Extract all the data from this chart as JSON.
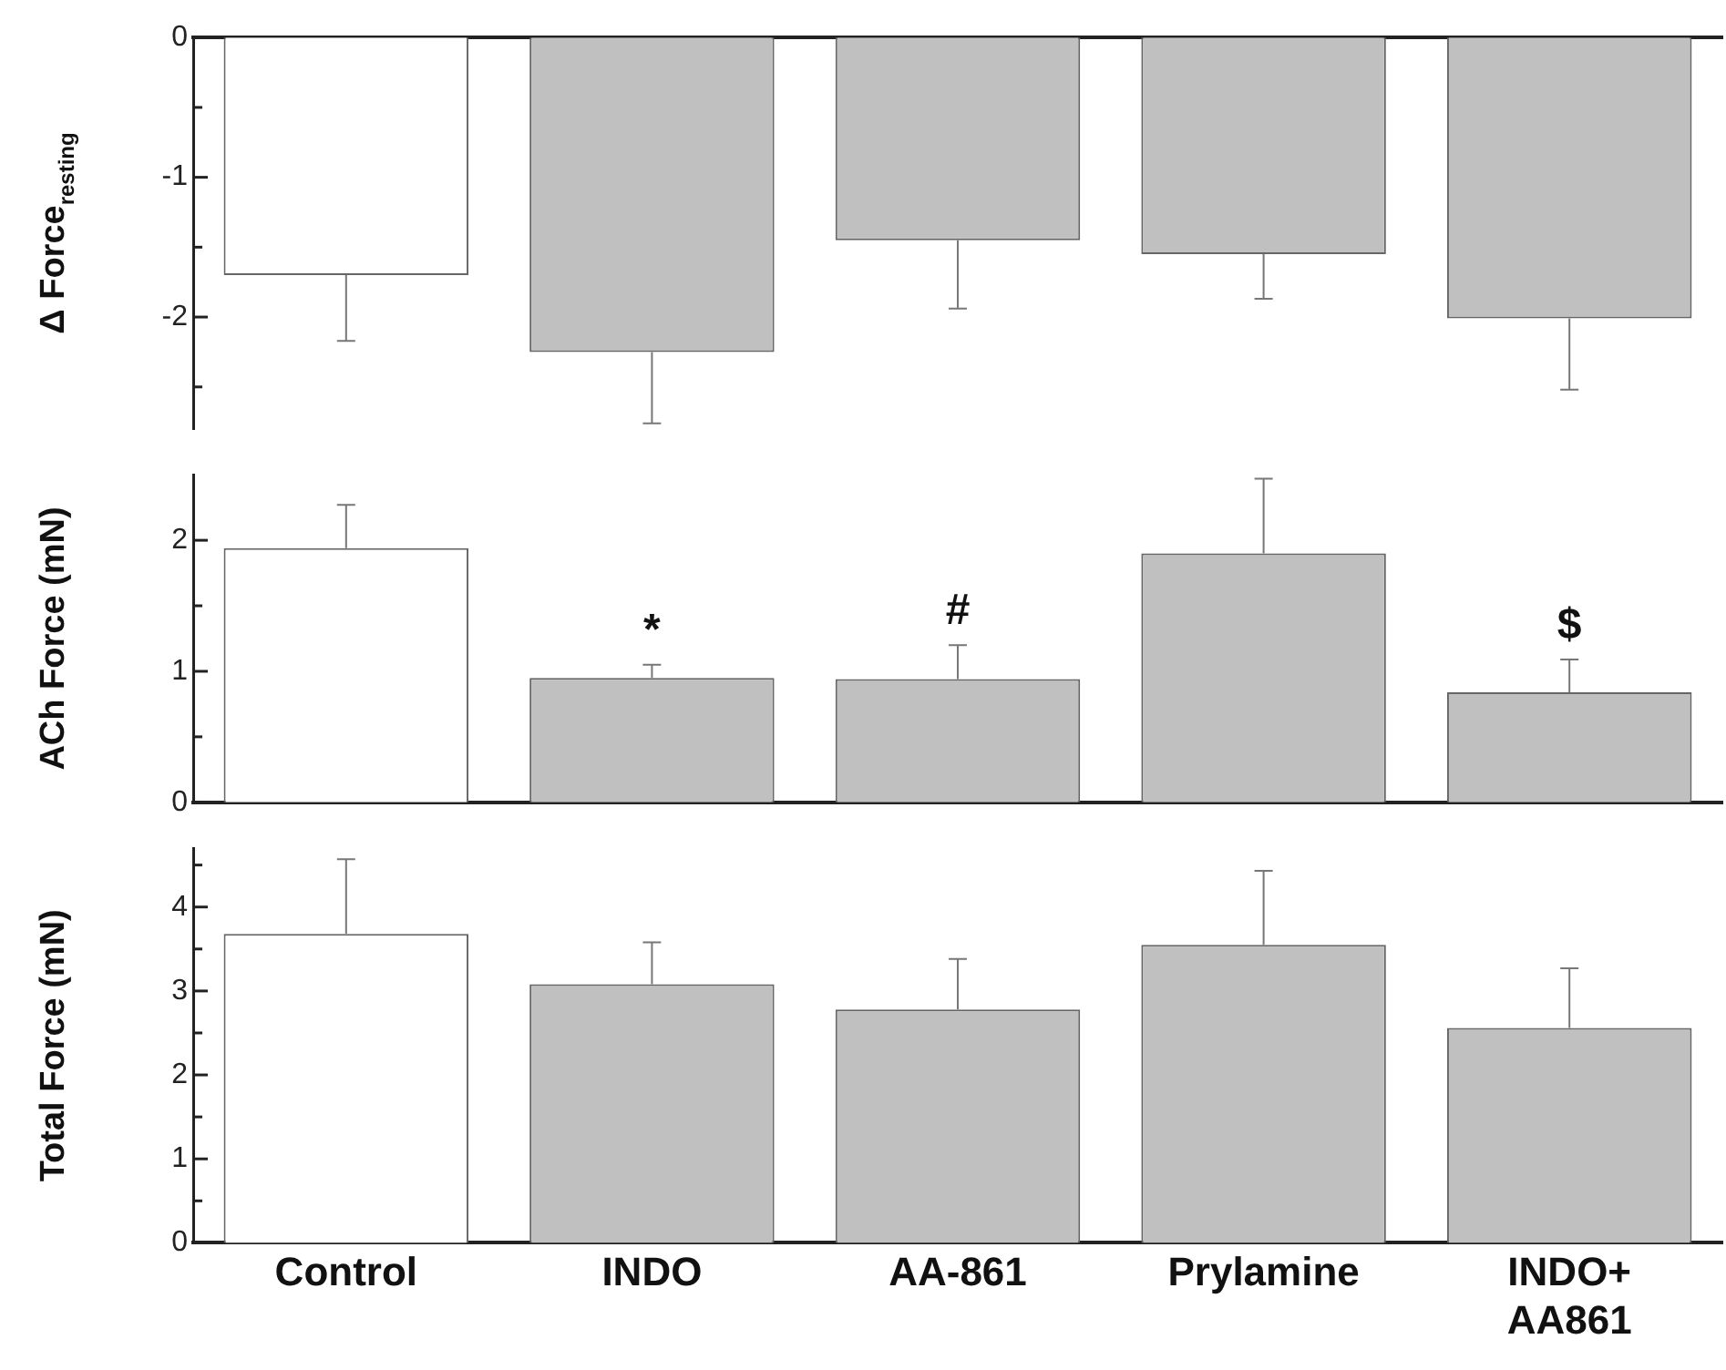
{
  "chart_data": [
    {
      "type": "bar",
      "ylabel": "Δ Force$_{resting}$",
      "categories": [
        "Control",
        "INDO",
        "AA-861",
        "Prylamine",
        "INDO+ AA861"
      ],
      "values": [
        -1.7,
        -2.25,
        -1.45,
        -1.55,
        -2.01
      ],
      "errors": [
        0.47,
        0.51,
        0.49,
        0.32,
        0.51
      ],
      "colors": [
        "#ffffff",
        "#c0c0c0",
        "#c0c0c0",
        "#c0c0c0",
        "#c0c0c0"
      ],
      "ylim": [
        -2.8,
        0
      ],
      "yticks": [
        0,
        {
          "value": -0.5,
          "label": null
        },
        -1,
        {
          "value": -1.5,
          "label": null
        },
        -2,
        {
          "value": -2.5,
          "label": null
        }
      ],
      "tick_labels": "y",
      "grid": false
    },
    {
      "type": "bar",
      "ylabel": "ACh Force (mN)",
      "categories": [
        "Control",
        "INDO",
        "AA-861",
        "Prylamine",
        "INDO+ AA861"
      ],
      "values": [
        1.94,
        0.95,
        0.94,
        1.9,
        0.84
      ],
      "errors": [
        0.33,
        0.1,
        0.26,
        0.57,
        0.25
      ],
      "colors": [
        "#ffffff",
        "#c0c0c0",
        "#c0c0c0",
        "#c0c0c0",
        "#c0c0c0"
      ],
      "ylim": [
        0,
        2.5
      ],
      "yticks": [
        0,
        {
          "value": 0.5,
          "label": null
        },
        1,
        {
          "value": 1.5,
          "label": null
        },
        2
      ],
      "tick_labels": "y",
      "grid": false,
      "annotations": [
        {
          "text": "*",
          "x": "INDO",
          "y": 0.95
        },
        {
          "text": "#",
          "x": "AA-861",
          "y": 0.94
        },
        {
          "text": "$",
          "x": "INDO+ AA861",
          "y": 0.84
        }
      ]
    },
    {
      "type": "bar",
      "ylabel": "Total Force (mN)",
      "categories": [
        "Control",
        "INDO",
        "AA-861",
        "Prylamine",
        "INDO+ AA861"
      ],
      "values": [
        3.68,
        3.08,
        2.78,
        3.55,
        2.56
      ],
      "errors": [
        0.89,
        0.5,
        0.6,
        0.88,
        0.71
      ],
      "colors": [
        "#ffffff",
        "#c0c0c0",
        "#c0c0c0",
        "#c0c0c0",
        "#c0c0c0"
      ],
      "ylim": [
        0,
        4.7
      ],
      "yticks": [
        0,
        {
          "value": 0.5,
          "label": null
        },
        1,
        {
          "value": 1.5,
          "label": null
        },
        2,
        {
          "value": 2.5,
          "label": null
        },
        3,
        {
          "value": 3.5,
          "label": null
        },
        4,
        {
          "value": 4.5,
          "label": null
        }
      ],
      "grid": false
    }
  ]
}
